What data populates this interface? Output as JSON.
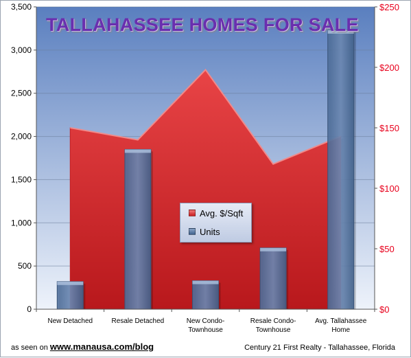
{
  "chart_data": {
    "type": "bar",
    "title": "TALLAHASSEE HOMES FOR SALE",
    "categories": [
      [
        "New Detached"
      ],
      [
        "Resale Detached"
      ],
      [
        "New Condo-",
        "Townhouse"
      ],
      [
        "Resale Condo-",
        "Townhouse"
      ],
      [
        "Avg. Tallahassee",
        "Home"
      ]
    ],
    "series": [
      {
        "name": "Avg. $/Sqft",
        "type": "area",
        "axis": "right",
        "color": "#e03a3c",
        "values": [
          150,
          140,
          198,
          120,
          143
        ]
      },
      {
        "name": "Units",
        "type": "bar",
        "axis": "left",
        "color": "#5878a4",
        "values": [
          320,
          1850,
          330,
          710,
          3230
        ]
      }
    ],
    "y_left": {
      "min": 0,
      "max": 3500,
      "ticks": [
        "0",
        "500",
        "1,000",
        "1,500",
        "2,000",
        "2,500",
        "3,000",
        "3,500"
      ],
      "color": "#000000"
    },
    "y_right": {
      "min": 0,
      "max": 250,
      "ticks": [
        "$0",
        "$50",
        "$100",
        "$150",
        "$200",
        "$250"
      ],
      "color": "#e8001c"
    },
    "grid": true,
    "legend_position": "center",
    "background": [
      "#5a7fbf",
      "#eef3fb"
    ]
  },
  "footer": {
    "prefix": "as seen on",
    "url": "www.manausa.com/blog",
    "credit": "Century 21 First Realty - Tallahassee, Florida"
  }
}
